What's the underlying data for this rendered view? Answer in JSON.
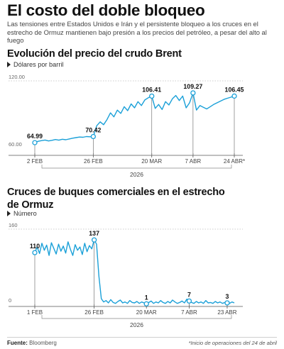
{
  "header": {
    "title": "El costo del doble bloqueo",
    "subtitle": "Las tensiones entre Estados Unidos e Irán y el persistente bloqueo a los cruces en el estrecho de Ormuz mantienen bajo presión a los  precios del petróleo, a pesar del alto al fuego"
  },
  "footer": {
    "source_label": "Fuente:",
    "source_value": "Bloomberg",
    "note": "*Inicio de operaciones del 24 de abril"
  },
  "colors": {
    "line": "#1aa0d8",
    "axis": "#555555",
    "grid": "#999999",
    "text": "#222222"
  },
  "chart_data": [
    {
      "type": "line",
      "title": "Evolución del precio del crudo Brent",
      "unit": "Dólares por barril",
      "year_label": "2026",
      "ylim": [
        60,
        120
      ],
      "y_ticks": [
        60,
        120
      ],
      "y_tick_labels": [
        "60.00",
        "120.00"
      ],
      "x_ticks": [
        {
          "x": 0,
          "label": "2 FEB"
        },
        {
          "x": 17,
          "label": "26 FEB"
        },
        {
          "x": 34,
          "label": "20 MAR"
        },
        {
          "x": 46,
          "label": "7 ABR"
        },
        {
          "x": 58,
          "label": "24 ABR*"
        }
      ],
      "annotations": [
        {
          "x": 0,
          "y": 64.99,
          "label": "64.99"
        },
        {
          "x": 17,
          "y": 70.42,
          "label": "70.42"
        },
        {
          "x": 34,
          "y": 106.41,
          "label": "106.41"
        },
        {
          "x": 46,
          "y": 109.27,
          "label": "109.27"
        },
        {
          "x": 58,
          "y": 106.45,
          "label": "106.45"
        }
      ],
      "series": [
        {
          "x": [
            0,
            1,
            2,
            3,
            4,
            5,
            6,
            7,
            8,
            9,
            10,
            11,
            12,
            13,
            14,
            15,
            16,
            17,
            18,
            19,
            20,
            21,
            22,
            23,
            24,
            25,
            26,
            27,
            28,
            29,
            30,
            31,
            32,
            33,
            34,
            35,
            36,
            37,
            38,
            39,
            40,
            41,
            42,
            43,
            44,
            45,
            46,
            47,
            48,
            49,
            50,
            51,
            52,
            53,
            54,
            55,
            56,
            57,
            58
          ],
          "values": [
            64.99,
            66.2,
            66.8,
            67.3,
            66.5,
            67.1,
            67.8,
            67.2,
            68.0,
            67.6,
            68.3,
            69.0,
            69.5,
            70.0,
            69.8,
            70.4,
            70.2,
            70.42,
            80.0,
            83.5,
            81.0,
            85.5,
            91.5,
            88.0,
            94.0,
            91.0,
            97.0,
            93.5,
            99.5,
            96.0,
            101.5,
            98.0,
            103.0,
            105.0,
            106.41,
            95.5,
            99.0,
            94.5,
            101.5,
            98.5,
            104.0,
            107.0,
            102.5,
            106.5,
            96.0,
            100.5,
            109.27,
            94.0,
            98.0,
            96.5,
            95.0,
            97.0,
            99.0,
            100.5,
            102.0,
            103.5,
            104.5,
            105.5,
            106.45
          ]
        }
      ]
    },
    {
      "type": "line",
      "title": "Cruces de buques comerciales en el estrecho de Ormuz",
      "unit": "Número",
      "year_label": "2026",
      "ylim": [
        0,
        160
      ],
      "y_ticks": [
        0,
        160
      ],
      "y_tick_labels": [
        "0",
        "160"
      ],
      "x_ticks": [
        {
          "x": 0,
          "label": "1 FEB"
        },
        {
          "x": 25,
          "label": "26 FEB"
        },
        {
          "x": 47,
          "label": "20 MAR"
        },
        {
          "x": 65,
          "label": "7 ABR"
        },
        {
          "x": 81,
          "label": "23 ABR"
        }
      ],
      "annotations": [
        {
          "x": 0,
          "y": 110,
          "label": "110"
        },
        {
          "x": 25,
          "y": 137,
          "label": "137"
        },
        {
          "x": 47,
          "y": 1,
          "label": "1"
        },
        {
          "x": 65,
          "y": 7,
          "label": "7"
        },
        {
          "x": 81,
          "y": 3,
          "label": "3"
        }
      ],
      "series": [
        {
          "x": [
            0,
            1,
            2,
            3,
            4,
            5,
            6,
            7,
            8,
            9,
            10,
            11,
            12,
            13,
            14,
            15,
            16,
            17,
            18,
            19,
            20,
            21,
            22,
            23,
            24,
            25,
            26,
            27,
            28,
            29,
            30,
            31,
            32,
            33,
            34,
            35,
            36,
            37,
            38,
            39,
            40,
            41,
            42,
            43,
            44,
            45,
            46,
            47,
            48,
            49,
            50,
            51,
            52,
            53,
            54,
            55,
            56,
            57,
            58,
            59,
            60,
            61,
            62,
            63,
            64,
            65,
            66,
            67,
            68,
            69,
            70,
            71,
            72,
            73,
            74,
            75,
            76,
            77,
            78,
            79,
            80,
            81,
            82,
            83,
            84
          ],
          "values": [
            110,
            122,
            108,
            130,
            115,
            126,
            104,
            131,
            119,
            107,
            128,
            113,
            124,
            109,
            133,
            117,
            104,
            127,
            115,
            122,
            106,
            130,
            112,
            125,
            118,
            137,
            128,
            60,
            12,
            5,
            8,
            3,
            10,
            4,
            2,
            6,
            9,
            3,
            5,
            2,
            8,
            4,
            3,
            6,
            2,
            5,
            3,
            1,
            4,
            7,
            2,
            5,
            3,
            8,
            4,
            2,
            6,
            3,
            9,
            5,
            2,
            4,
            7,
            3,
            11,
            7,
            4,
            2,
            6,
            3,
            5,
            2,
            8,
            3,
            4,
            2,
            6,
            3,
            5,
            2,
            4,
            3,
            2,
            5,
            3
          ]
        }
      ]
    }
  ]
}
